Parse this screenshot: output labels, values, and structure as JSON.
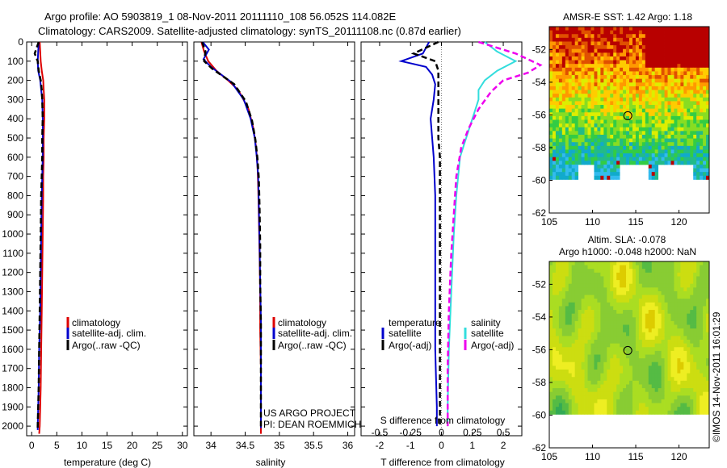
{
  "header": {
    "line1": "Argo profile: AO 5903819_1 08-Nov-2011 20111110_108 56.052S 114.082E",
    "line2": "Climatology: CARS2009. Satellite-adjusted climatology: synTS_20111108.nc (0.87d earlier)"
  },
  "colors": {
    "climatology": "#dd0000",
    "satellite": "#0000cc",
    "argo": "#000000",
    "sal_satellite": "#33dddd",
    "sal_argo": "#ee00ee"
  },
  "chart_data": [
    {
      "type": "line",
      "name": "temperature-profile",
      "xlabel": "temperature (deg C)",
      "xlim": [
        -1,
        31
      ],
      "ylim": [
        0,
        2050
      ],
      "y_reversed": true,
      "xticks": [
        0,
        5,
        10,
        15,
        20,
        25,
        30
      ],
      "yticks": [
        0,
        100,
        200,
        300,
        400,
        500,
        600,
        700,
        800,
        900,
        1000,
        1100,
        1200,
        1300,
        1400,
        1500,
        1600,
        1700,
        1800,
        1900,
        2000
      ],
      "legend": [
        "climatology",
        "satellite-adj. clim.",
        "Argo(..raw -QC)"
      ],
      "series": [
        {
          "name": "climatology",
          "color": "#dd0000",
          "x": [
            1.6,
            1.7,
            1.8,
            2.0,
            2.3,
            2.4,
            2.5,
            2.5,
            2.4,
            2.4,
            2.3,
            2.3,
            2.2,
            2.1,
            2.0,
            1.9,
            1.8,
            1.7,
            1.6,
            1.5
          ],
          "y": [
            0,
            50,
            100,
            150,
            200,
            250,
            300,
            400,
            500,
            600,
            700,
            800,
            1000,
            1200,
            1400,
            1600,
            1800,
            1900,
            2000,
            2040
          ]
        },
        {
          "name": "satellite-adj. clim.",
          "color": "#0000cc",
          "x": [
            1.4,
            1.3,
            1.2,
            1.3,
            1.7,
            1.9,
            2.1,
            2.2,
            2.2,
            2.2,
            2.1,
            2.0,
            1.9,
            1.8,
            1.7,
            1.5,
            1.4,
            1.3,
            1.2,
            1.2
          ],
          "y": [
            0,
            50,
            100,
            150,
            200,
            250,
            300,
            400,
            500,
            600,
            700,
            800,
            1000,
            1200,
            1400,
            1600,
            1800,
            1900,
            2000,
            2020
          ]
        },
        {
          "name": "Argo(..raw -QC)",
          "color": "#000000",
          "dashed": true,
          "x": [
            1.4,
            0.6,
            1.2,
            1.4,
            1.8,
            2.0,
            2.1,
            2.2,
            2.1,
            2.1,
            2.0,
            1.9,
            1.8,
            1.7,
            1.6,
            1.5,
            1.4,
            1.3,
            1.2,
            1.2
          ],
          "y": [
            0,
            60,
            100,
            150,
            200,
            250,
            300,
            400,
            500,
            600,
            700,
            800,
            1000,
            1200,
            1400,
            1600,
            1800,
            1900,
            2000,
            2020
          ]
        }
      ]
    },
    {
      "type": "line",
      "name": "salinity-profile",
      "xlabel": "salinity",
      "xlim": [
        33.75,
        36.1
      ],
      "ylim": [
        0,
        2050
      ],
      "y_reversed": true,
      "xticks": [
        34,
        34.5,
        35,
        35.5,
        36
      ],
      "xticklabels": [
        "34",
        "34.5",
        "35",
        "35.5",
        "36"
      ],
      "legend": [
        "climatology",
        "satellite-adj. clim.",
        "Argo(..raw -QC)"
      ],
      "annotation": [
        "US ARGO PROJECT",
        "PI: DEAN ROEMMICH"
      ],
      "series": [
        {
          "name": "climatology",
          "color": "#dd0000",
          "x": [
            33.86,
            33.9,
            33.96,
            34.08,
            34.25,
            34.4,
            34.55,
            34.62,
            34.66,
            34.68,
            34.69,
            34.7,
            34.71,
            34.72,
            34.72,
            34.73,
            34.73
          ],
          "y": [
            0,
            50,
            100,
            150,
            200,
            250,
            350,
            450,
            550,
            650,
            750,
            900,
            1100,
            1300,
            1500,
            1700,
            2040
          ]
        },
        {
          "name": "satellite-adj. clim.",
          "color": "#0000cc",
          "x": [
            33.88,
            33.97,
            33.89,
            34.0,
            34.15,
            34.3,
            34.48,
            34.58,
            34.64,
            34.67,
            34.69,
            34.7,
            34.71,
            34.72,
            34.73,
            34.73,
            34.73
          ],
          "y": [
            0,
            40,
            90,
            130,
            170,
            210,
            300,
            400,
            500,
            600,
            700,
            850,
            1050,
            1250,
            1450,
            1650,
            2010
          ]
        },
        {
          "name": "Argo(..raw -QC)",
          "color": "#000000",
          "dashed": true,
          "x": [
            33.87,
            33.92,
            33.9,
            34.02,
            34.18,
            34.34,
            34.51,
            34.6,
            34.65,
            34.68,
            34.7,
            34.71,
            34.72,
            34.72,
            34.73,
            34.73,
            34.73
          ],
          "y": [
            0,
            50,
            100,
            140,
            180,
            220,
            310,
            410,
            510,
            610,
            710,
            860,
            1060,
            1260,
            1460,
            1660,
            2010
          ]
        }
      ]
    },
    {
      "type": "line",
      "name": "difference-profile",
      "xlabel": "T difference from climatology",
      "xlabel2": "S difference from climatology",
      "xlim": [
        -2.6,
        2.6
      ],
      "ylim": [
        0,
        2050
      ],
      "y_reversed": true,
      "xticks": [
        -2,
        -1,
        0,
        1,
        2
      ],
      "xticks2": [
        -0.5,
        -0.25,
        0,
        0.25,
        0.5
      ],
      "xticklabels2": [
        "-0.5",
        "-0.25",
        "0",
        "0.25",
        "0.5"
      ],
      "legend_headers": [
        "temperature",
        "salinity"
      ],
      "legend": [
        "satellite",
        "Argo(-adj)",
        "satellite",
        "Argo(-adj)"
      ],
      "series": [
        {
          "name": "satellite",
          "group": "temperature",
          "color": "#0000cc",
          "x": [
            -0.4,
            -0.6,
            -1.3,
            -0.5,
            -0.3,
            -0.2,
            -0.25,
            -0.35,
            -0.3,
            -0.25,
            -0.2,
            -0.2,
            -0.2,
            -0.2,
            -0.15,
            -0.15
          ],
          "y": [
            0,
            60,
            100,
            130,
            170,
            220,
            300,
            400,
            500,
            600,
            800,
            1000,
            1300,
            1600,
            1900,
            2000
          ]
        },
        {
          "name": "Argo(-adj)",
          "group": "temperature",
          "color": "#000000",
          "dashed": true,
          "x": [
            -0.1,
            -0.9,
            -0.2,
            -0.1,
            -0.1,
            -0.1,
            -0.1,
            -0.1,
            -0.05,
            -0.05,
            -0.05,
            -0.05,
            -0.05,
            -0.05,
            -0.05
          ],
          "y": [
            0,
            60,
            100,
            150,
            200,
            300,
            400,
            500,
            600,
            700,
            900,
            1100,
            1400,
            1700,
            2000
          ]
        },
        {
          "name": "satellite",
          "group": "salinity",
          "color": "#33dddd",
          "x": [
            0.35,
            0.45,
            0.6,
            0.45,
            0.35,
            0.3,
            0.3,
            0.25,
            0.2,
            0.15,
            0.12,
            0.1,
            0.08,
            0.06,
            0.05,
            0.05
          ],
          "y": [
            0,
            50,
            100,
            150,
            200,
            250,
            300,
            400,
            500,
            600,
            800,
            1000,
            1300,
            1600,
            1900,
            2000
          ]
        },
        {
          "name": "Argo(-adj)",
          "group": "salinity",
          "color": "#ee00ee",
          "dashed": true,
          "x": [
            0.3,
            0.6,
            0.8,
            0.7,
            0.5,
            0.4,
            0.3,
            0.22,
            0.16,
            0.12,
            0.1,
            0.08,
            0.06,
            0.05,
            0.05
          ],
          "y": [
            0,
            60,
            120,
            160,
            200,
            260,
            350,
            450,
            550,
            700,
            900,
            1100,
            1400,
            1700,
            2000
          ]
        }
      ]
    },
    {
      "type": "heatmap",
      "name": "sst-map",
      "title": "AMSR-E SST: 1.42 Argo: 1.18",
      "xlim": [
        105,
        123.5
      ],
      "ylim": [
        -62,
        -50.6
      ],
      "xticks": [
        105,
        110,
        115,
        120
      ],
      "yticks": [
        -52,
        -54,
        -56,
        -58,
        -60,
        -62
      ],
      "marker": {
        "lon": 114.08,
        "lat": -56.05
      }
    },
    {
      "type": "heatmap",
      "name": "sla-map",
      "title": "Altim. SLA: -0.078",
      "subtitle": "Argo h1000: -0.048 h2000: NaN",
      "xlim": [
        105,
        123.5
      ],
      "ylim": [
        -62,
        -50.6
      ],
      "xticks": [
        105,
        110,
        115,
        120
      ],
      "yticks": [
        -52,
        -54,
        -56,
        -58,
        -60,
        -62
      ],
      "marker": {
        "lon": 114.08,
        "lat": -56.05
      }
    }
  ],
  "footer": {
    "timestamp": "©IMOS 14-Nov-2011 16:01:29"
  }
}
